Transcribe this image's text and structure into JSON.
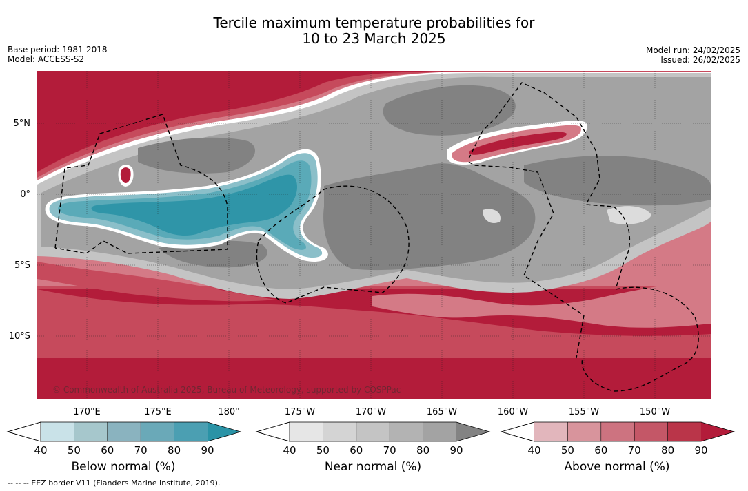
{
  "title": {
    "line1": "Tercile maximum temperature probabilities for",
    "line2": "10 to 23 March 2025"
  },
  "meta": {
    "base_period": "Base period: 1981-2018",
    "model": "Model: ACCESS-S2",
    "model_run": "Model run: 24/02/2025",
    "issued": "Issued: 26/02/2025"
  },
  "map": {
    "lat_labels": [
      "5°N",
      "0°",
      "5°S",
      "10°S"
    ],
    "lon_labels": [
      "170°E",
      "175°E",
      "180°",
      "175°W",
      "170°W",
      "165°W",
      "160°W",
      "155°W",
      "150°W"
    ],
    "copyright": "© Commonwealth of Australia 2025, Bureau of Meteorology, supported by COSPPac",
    "colors": {
      "above": [
        "#b31c3a",
        "#c64a5c",
        "#d47a86",
        "#e0a7ae",
        "#ffffff"
      ],
      "near": [
        "#828282",
        "#a3a3a3",
        "#c4c4c4",
        "#dcdcdc"
      ],
      "below": [
        "#2f95a8",
        "#5aaab8",
        "#8bbfc9",
        "#b5d5dc"
      ]
    }
  },
  "colorbars": [
    {
      "label": "Below normal (%)",
      "ticks": [
        "40",
        "50",
        "60",
        "70",
        "80",
        "90"
      ],
      "colors": [
        "#c9e2e8",
        "#a6c7cc",
        "#8ab3bf",
        "#6aa9b8",
        "#4b9fb2",
        "#2a93a6"
      ]
    },
    {
      "label": "Near normal (%)",
      "ticks": [
        "40",
        "50",
        "60",
        "70",
        "80",
        "90"
      ],
      "colors": [
        "#e6e6e6",
        "#d4d4d4",
        "#c4c4c4",
        "#b3b3b3",
        "#a3a3a3",
        "#838383"
      ]
    },
    {
      "label": "Above normal (%)",
      "ticks": [
        "40",
        "50",
        "60",
        "70",
        "80",
        "90"
      ],
      "colors": [
        "#e2b6bc",
        "#d8949c",
        "#cd7380",
        "#c45767",
        "#ba3549",
        "#b31c3a"
      ]
    }
  ],
  "footnote": "--  --  -- EEZ border V11 (Flanders Marine Institute, 2019)."
}
